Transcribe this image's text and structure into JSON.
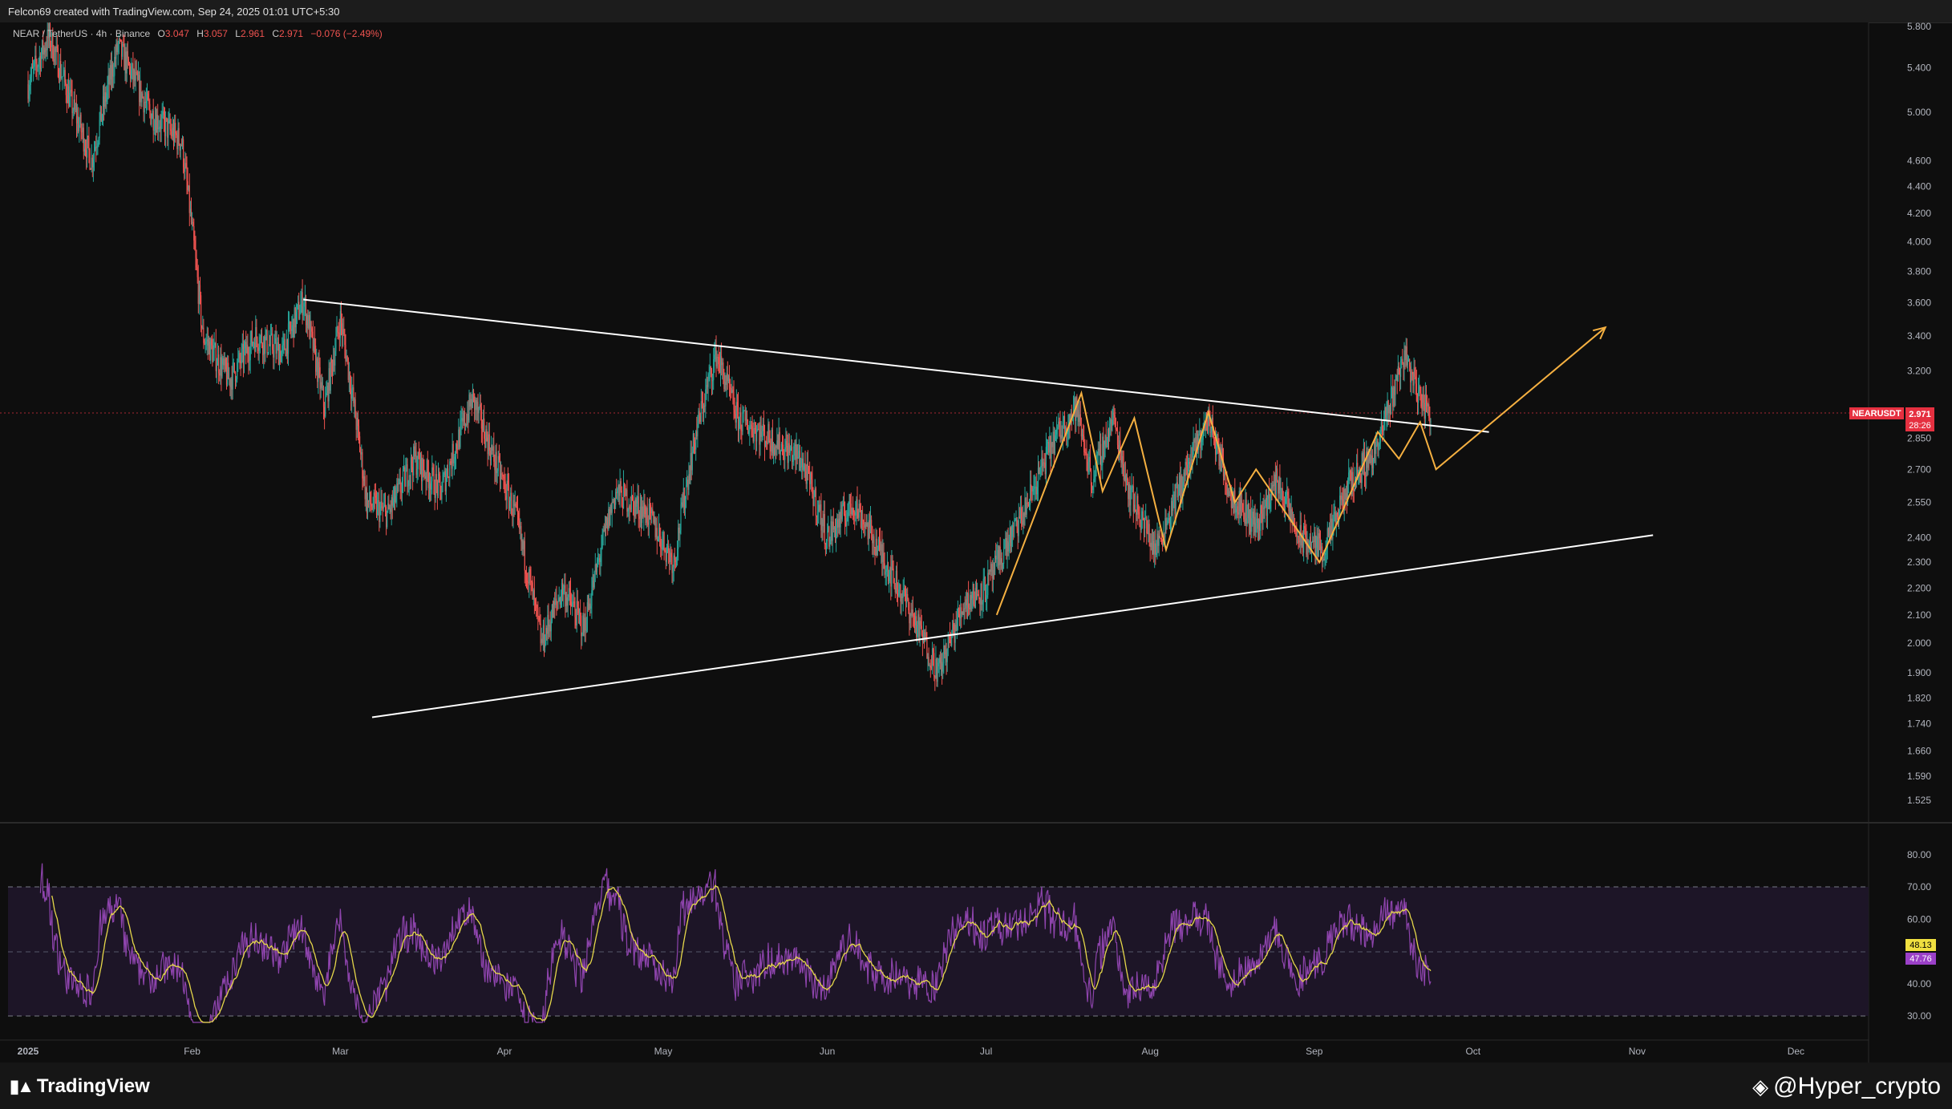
{
  "header": {
    "credit": "Felcon69 created with TradingView.com, Sep 24, 2025 01:01 UTC+5:30"
  },
  "legend": {
    "symbol": "NEAR / TetherUS · 4h · Binance",
    "o_label": "O",
    "o_value": "3.047",
    "h_label": "H",
    "h_value": "3.057",
    "l_label": "L",
    "l_value": "2.961",
    "c_label": "C",
    "c_value": "2.971",
    "change": "−0.076 (−2.49%)"
  },
  "price_tag": {
    "symbol": "NEARUSDT",
    "price": "2.971",
    "countdown": "28:26"
  },
  "rsi_tags": {
    "rsi": "48.13",
    "ma": "47.76"
  },
  "footer": {
    "brand": "TradingView",
    "watermark": "@Hyper_crypto"
  },
  "colors": {
    "up": "#26a69a",
    "down": "#ef5350",
    "pattern": "#f5b041",
    "rsi": "#8e44ad",
    "rsi_ma": "#e6d84a",
    "price_tag": "#e53040"
  },
  "chart_data": {
    "type": "candlestick",
    "price_axis": [
      "5.800",
      "5.400",
      "5.000",
      "4.600",
      "4.400",
      "4.200",
      "4.000",
      "3.800",
      "3.600",
      "3.400",
      "3.200",
      "2.850",
      "2.700",
      "2.550",
      "2.400",
      "2.300",
      "2.200",
      "2.100",
      "2.000",
      "1.900",
      "1.820",
      "1.740",
      "1.660",
      "1.590",
      "1.525"
    ],
    "rsi_axis": [
      "80.00",
      "70.00",
      "60.00",
      "40.00",
      "30.00"
    ],
    "time_axis": [
      "2025",
      "Feb",
      "Mar",
      "Apr",
      "May",
      "Jun",
      "Jul",
      "Aug",
      "Sep",
      "Oct",
      "Nov",
      "Dec"
    ],
    "last_price": 2.971,
    "rsi_levels": {
      "upper": 70,
      "middle": 50,
      "lower": 30
    },
    "rsi_value": 48.13,
    "rsi_ma_value": 47.76,
    "price_path": [
      [
        "2025-01-01",
        5.25
      ],
      [
        "2025-01-05",
        5.7
      ],
      [
        "2025-01-09",
        5.1
      ],
      [
        "2025-01-13",
        4.6
      ],
      [
        "2025-01-18",
        5.6
      ],
      [
        "2025-01-24",
        5.0
      ],
      [
        "2025-01-30",
        4.75
      ],
      [
        "2025-02-03",
        3.4
      ],
      [
        "2025-02-08",
        3.15
      ],
      [
        "2025-02-13",
        3.4
      ],
      [
        "2025-02-18",
        3.3
      ],
      [
        "2025-02-22",
        3.62
      ],
      [
        "2025-02-26",
        3.0
      ],
      [
        "2025-03-01",
        3.5
      ],
      [
        "2025-03-06",
        2.55
      ],
      [
        "2025-03-10",
        2.5
      ],
      [
        "2025-03-15",
        2.75
      ],
      [
        "2025-03-20",
        2.6
      ],
      [
        "2025-03-26",
        3.05
      ],
      [
        "2025-03-30",
        2.75
      ],
      [
        "2025-04-03",
        2.5
      ],
      [
        "2025-04-08",
        2.0
      ],
      [
        "2025-04-12",
        2.2
      ],
      [
        "2025-04-16",
        2.05
      ],
      [
        "2025-04-22",
        2.6
      ],
      [
        "2025-04-28",
        2.5
      ],
      [
        "2025-05-03",
        2.3
      ],
      [
        "2025-05-07",
        2.85
      ],
      [
        "2025-05-11",
        3.3
      ],
      [
        "2025-05-15",
        2.95
      ],
      [
        "2025-05-21",
        2.85
      ],
      [
        "2025-05-27",
        2.75
      ],
      [
        "2025-06-01",
        2.4
      ],
      [
        "2025-06-06",
        2.55
      ],
      [
        "2025-06-12",
        2.3
      ],
      [
        "2025-06-17",
        2.1
      ],
      [
        "2025-06-22",
        1.9
      ],
      [
        "2025-06-27",
        2.15
      ],
      [
        "2025-07-01",
        2.2
      ],
      [
        "2025-07-08",
        2.5
      ],
      [
        "2025-07-14",
        2.85
      ],
      [
        "2025-07-18",
        3.0
      ],
      [
        "2025-07-21",
        2.65
      ],
      [
        "2025-07-25",
        2.95
      ],
      [
        "2025-07-28",
        2.6
      ],
      [
        "2025-08-02",
        2.35
      ],
      [
        "2025-08-08",
        2.7
      ],
      [
        "2025-08-12",
        2.95
      ],
      [
        "2025-08-16",
        2.6
      ],
      [
        "2025-08-21",
        2.45
      ],
      [
        "2025-08-25",
        2.65
      ],
      [
        "2025-08-29",
        2.4
      ],
      [
        "2025-09-03",
        2.35
      ],
      [
        "2025-09-08",
        2.65
      ],
      [
        "2025-09-13",
        2.8
      ],
      [
        "2025-09-18",
        3.3
      ],
      [
        "2025-09-21",
        3.05
      ],
      [
        "2025-09-23",
        2.97
      ]
    ],
    "trendlines": [
      {
        "name": "descending-resistance",
        "from": [
          "2025-02-22",
          3.62
        ],
        "to": [
          "2025-10-04",
          2.88
        ]
      },
      {
        "name": "ascending-support",
        "from": [
          "2025-03-07",
          1.76
        ],
        "to": [
          "2025-11-04",
          2.41
        ]
      }
    ],
    "projection_path": [
      [
        "2025-07-03",
        2.1
      ],
      [
        "2025-07-19",
        3.08
      ],
      [
        "2025-07-23",
        2.6
      ],
      [
        "2025-07-29",
        2.95
      ],
      [
        "2025-08-04",
        2.35
      ],
      [
        "2025-08-12",
        2.98
      ],
      [
        "2025-08-17",
        2.55
      ],
      [
        "2025-08-21",
        2.7
      ],
      [
        "2025-09-02",
        2.3
      ],
      [
        "2025-09-13",
        2.88
      ],
      [
        "2025-09-17",
        2.75
      ],
      [
        "2025-09-21",
        2.93
      ],
      [
        "2025-09-24",
        2.7
      ],
      [
        "2025-10-26",
        3.45
      ]
    ]
  }
}
